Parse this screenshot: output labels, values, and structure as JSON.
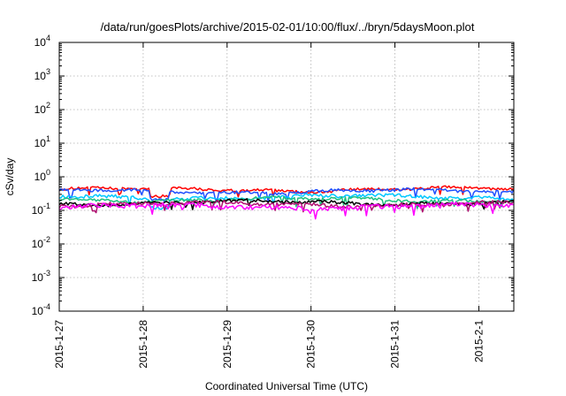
{
  "chart_data": {
    "type": "line",
    "title": "/data/run/goesPlots/archive/2015-02-01/10:00/flux/../bryn/5daysMoon.plot",
    "xlabel": "Coordinated Universal Time (UTC)",
    "ylabel": "cSv/day",
    "yscale": "log",
    "ylim": [
      0.0001,
      10000
    ],
    "xlim": [
      "2015-01-27T00:00",
      "2015-02-01T10:00"
    ],
    "grid": true,
    "x_ticks": [
      {
        "value": "2015-01-27T00:00",
        "label": "2015-1-27"
      },
      {
        "value": "2015-01-28T00:00",
        "label": "2015-1-28"
      },
      {
        "value": "2015-01-29T00:00",
        "label": "2015-1-29"
      },
      {
        "value": "2015-01-30T00:00",
        "label": "2015-1-30"
      },
      {
        "value": "2015-01-31T00:00",
        "label": "2015-1-31"
      },
      {
        "value": "2015-02-01T00:00",
        "label": "2015-2-1"
      }
    ],
    "y_ticks": [
      {
        "value": 0.0001,
        "base": "10",
        "exp": "-4"
      },
      {
        "value": 0.001,
        "base": "10",
        "exp": "-3"
      },
      {
        "value": 0.01,
        "base": "10",
        "exp": "-2"
      },
      {
        "value": 0.1,
        "base": "10",
        "exp": "-1"
      },
      {
        "value": 1,
        "base": "10",
        "exp": "0"
      },
      {
        "value": 10,
        "base": "10",
        "exp": "1"
      },
      {
        "value": 100,
        "base": "10",
        "exp": "2"
      },
      {
        "value": 1000,
        "base": "10",
        "exp": "3"
      },
      {
        "value": 10000,
        "base": "10",
        "exp": "4"
      }
    ],
    "series": [
      {
        "color": "#ff0000",
        "level": 0.42,
        "spread": 0.09
      },
      {
        "color": "#1f4fff",
        "level": 0.37,
        "spread": 0.1
      },
      {
        "color": "#00c8ff",
        "level": 0.25,
        "spread": 0.12
      },
      {
        "color": "#20c080",
        "level": 0.21,
        "spread": 0.1
      },
      {
        "color": "#000000",
        "level": 0.17,
        "spread": 0.11
      },
      {
        "color": "#b01070",
        "level": 0.155,
        "spread": 0.12
      },
      {
        "color": "#ff00ff",
        "level": 0.13,
        "spread": 0.16
      }
    ]
  }
}
